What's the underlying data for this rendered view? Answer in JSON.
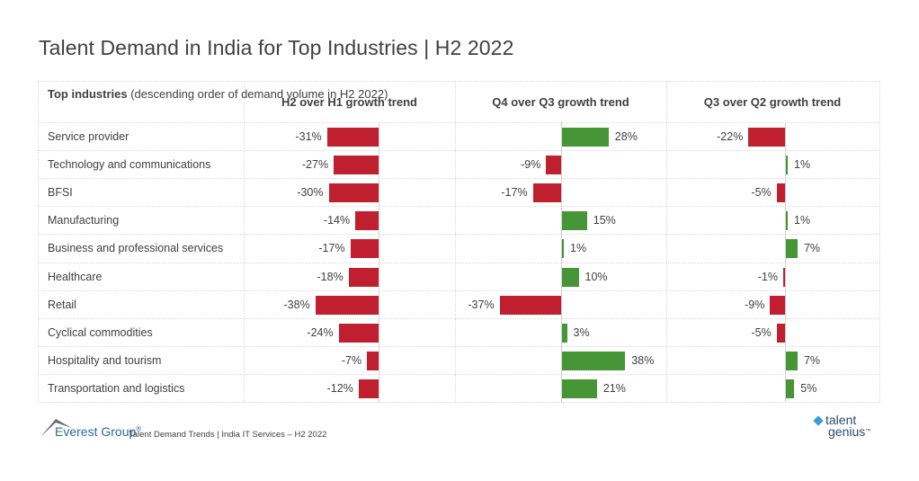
{
  "title": "Talent Demand in India for Top Industries | H2 2022",
  "header": {
    "label_bold": "Top industries",
    "label_rest": " (descending order of demand volume in H2 2022)",
    "columns": [
      "H2 over H1 growth trend",
      "Q4 over Q3 growth trend",
      "Q3 over Q2 growth trend"
    ]
  },
  "colors": {
    "negative": "#c01f2f",
    "positive": "#469536"
  },
  "chart_data": {
    "type": "bar",
    "orientation": "horizontal",
    "title": "Talent Demand in India for Top Industries | H2 2022",
    "categories": [
      "Service provider",
      "Technology and communications",
      "BFSI",
      "Manufacturing",
      "Business and professional services",
      "Healthcare",
      "Retail",
      "Cyclical commodities",
      "Hospitality and tourism",
      "Transportation and logistics"
    ],
    "series": [
      {
        "name": "H2 over H1 growth trend",
        "values": [
          -31,
          -27,
          -30,
          -14,
          -17,
          -18,
          -38,
          -24,
          -7,
          -12
        ]
      },
      {
        "name": "Q4 over Q3 growth trend",
        "values": [
          28,
          -9,
          -17,
          15,
          1,
          10,
          -37,
          3,
          38,
          21
        ]
      },
      {
        "name": "Q3 over Q2 growth trend",
        "values": [
          -22,
          1,
          -5,
          1,
          7,
          -1,
          -9,
          -5,
          7,
          5
        ]
      }
    ],
    "unit": "%",
    "xlim": [
      -40,
      40
    ]
  },
  "footer": {
    "brand": "Everest Group",
    "registered": "®",
    "text": "Talent Demand Trends | India IT Services – H2 2022",
    "logo_top": "talent",
    "logo_bottom": "genius",
    "logo_tm": "™"
  }
}
